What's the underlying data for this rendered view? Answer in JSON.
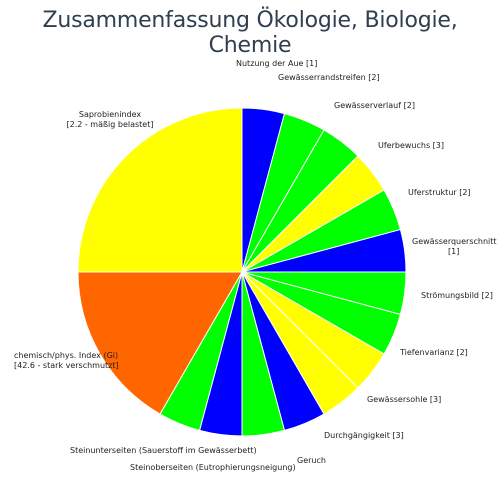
{
  "chart_data": {
    "type": "pie",
    "title": "Zusammenfassung Ökologie, Biologie, Chemie",
    "colors_used": {
      "blue": "#0000ff",
      "green": "#00ff00",
      "yellow": "#ffff00",
      "orange": "#ff6600"
    },
    "slices": [
      {
        "label": "Nutzung der Aue [1]",
        "value": 1,
        "color": "#0000ff"
      },
      {
        "label": "Gewässerrandstreifen [2]",
        "value": 1,
        "color": "#00ff00"
      },
      {
        "label": "Gewässerverlauf [2]",
        "value": 1,
        "color": "#00ff00"
      },
      {
        "label": "Uferbewuchs [3]",
        "value": 1,
        "color": "#ffff00"
      },
      {
        "label": "Uferstruktur [2]",
        "value": 1,
        "color": "#00ff00"
      },
      {
        "label": "Gewässerquerschnitt [1]",
        "value": 1,
        "color": "#0000ff"
      },
      {
        "label": "Strömungsbild [2]",
        "value": 1,
        "color": "#00ff00"
      },
      {
        "label": "Tiefenvarianz [2]",
        "value": 1,
        "color": "#00ff00"
      },
      {
        "label": "Gewässersohle [3]",
        "value": 1,
        "color": "#ffff00"
      },
      {
        "label": "Durchgängigkeit [3]",
        "value": 1,
        "color": "#ffff00"
      },
      {
        "label": "Geruch",
        "value": 1,
        "color": "#0000ff"
      },
      {
        "label": "Steinoberseiten (Eutrophierungsneigung)",
        "value": 1,
        "color": "#00ff00"
      },
      {
        "label": "Steinunterseiten (Sauerstoff im Gewässerbett)",
        "value": 1,
        "color": "#0000ff"
      },
      {
        "label": "Steinunterseiten (Sauerstoff im Gewässerbett)",
        "value": 1,
        "color": "#00ff00"
      },
      {
        "label": "chemisch/phys. Index (Gi) [42.6 - stark verschmutzt]",
        "value": 4,
        "color": "#ff6600"
      },
      {
        "label": "Saprobienindex [2.2 - mäßig belastet]",
        "value": 6,
        "color": "#ffff00"
      }
    ]
  }
}
